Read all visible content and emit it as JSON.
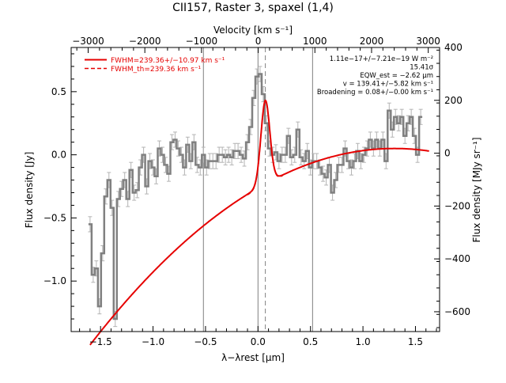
{
  "chart_data": {
    "type": "line",
    "title": "CII157, Raster 3, spaxel (1,4)",
    "xlabel": "λ−λrest [μm]",
    "ylabel": "Flux density [Jy]",
    "x2label": "Velocity [km s⁻¹]",
    "y2label": "Flux density [MJy sr⁻¹]",
    "xlim": [
      -1.78,
      1.73
    ],
    "ylim": [
      -1.4,
      0.85
    ],
    "x2lim": [
      -3300,
      3200
    ],
    "y2lim": [
      -675,
      400
    ],
    "xticks": [
      -1.5,
      -1.0,
      -0.5,
      0.0,
      0.5,
      1.0,
      1.5
    ],
    "xtick_labels": [
      "−1.5",
      "−1.0",
      "−0.5",
      "0.0",
      "0.5",
      "1.0",
      "1.5"
    ],
    "yticks": [
      -1.0,
      -0.5,
      0.0,
      0.5
    ],
    "ytick_labels": [
      "−1.0",
      "−0.5",
      "0.0",
      "0.5"
    ],
    "x2ticks": [
      -3000,
      -2000,
      -1000,
      0,
      1000,
      2000,
      3000
    ],
    "x2tick_labels": [
      "−3000",
      "−2000",
      "−1000",
      "0",
      "1000",
      "2000",
      "3000"
    ],
    "y2ticks": [
      -600,
      -400,
      -200,
      0,
      200,
      400
    ],
    "y2tick_labels": [
      "−600",
      "−400",
      "−200",
      "0",
      "200",
      "400"
    ],
    "vlines_solid": [
      -0.52,
      0.0,
      0.52
    ],
    "vline_dashed": 0.07,
    "legend": {
      "placement": "top-left",
      "fit_label": "FWHM=239.36+/−10.97 km s⁻¹",
      "theory_label": "FWHM_th=239.36 km s⁻¹"
    },
    "annotations": [
      "1.11e−17+/−7.21e−19 W m⁻²",
      "15.41σ",
      "EQW_est = −2.62 μm",
      "v = 139.41+/−5.82 km s⁻¹",
      "Broadening = 0.08+/−0.00 km s⁻¹"
    ],
    "colors": {
      "spectrum": "#808080",
      "errorbar": "#b4b4b4",
      "fit": "#e60000",
      "vline": "#808080"
    },
    "series": [
      {
        "name": "spectrum",
        "x": [
          -1.6,
          -1.57,
          -1.54,
          -1.51,
          -1.48,
          -1.45,
          -1.42,
          -1.39,
          -1.36,
          -1.33,
          -1.3,
          -1.27,
          -1.24,
          -1.21,
          -1.18,
          -1.15,
          -1.12,
          -1.09,
          -1.06,
          -1.03,
          -1.0,
          -0.97,
          -0.94,
          -0.91,
          -0.88,
          -0.85,
          -0.82,
          -0.79,
          -0.76,
          -0.73,
          -0.7,
          -0.67,
          -0.64,
          -0.61,
          -0.58,
          -0.55,
          -0.52,
          -0.49,
          -0.46,
          -0.43,
          -0.4,
          -0.37,
          -0.34,
          -0.31,
          -0.28,
          -0.25,
          -0.22,
          -0.19,
          -0.16,
          -0.13,
          -0.1,
          -0.07,
          -0.04,
          -0.01,
          0.02,
          0.05,
          0.08,
          0.11,
          0.14,
          0.17,
          0.2,
          0.23,
          0.26,
          0.29,
          0.32,
          0.35,
          0.38,
          0.41,
          0.44,
          0.47,
          0.5,
          0.53,
          0.56,
          0.59,
          0.62,
          0.65,
          0.68,
          0.71,
          0.74,
          0.77,
          0.8,
          0.83,
          0.86,
          0.89,
          0.92,
          0.95,
          0.98,
          1.01,
          1.04,
          1.07,
          1.1,
          1.13,
          1.16,
          1.19,
          1.22,
          1.25,
          1.28,
          1.31,
          1.34,
          1.37,
          1.4,
          1.43,
          1.46,
          1.49,
          1.52,
          1.55
        ],
        "y": [
          -0.55,
          -0.95,
          -0.9,
          -1.2,
          -0.78,
          -0.33,
          -0.2,
          -0.42,
          -1.3,
          -0.35,
          -0.27,
          -0.2,
          -0.35,
          -0.12,
          -0.3,
          -0.28,
          -0.1,
          0.0,
          -0.25,
          -0.05,
          -0.1,
          -0.17,
          0.05,
          0.0,
          -0.08,
          -0.15,
          0.1,
          0.12,
          0.05,
          0.0,
          -0.1,
          0.08,
          -0.05,
          0.1,
          -0.08,
          -0.1,
          0.0,
          -0.1,
          -0.05,
          -0.05,
          -0.05,
          0.0,
          0.0,
          -0.02,
          0.0,
          -0.02,
          0.03,
          0.03,
          0.0,
          -0.03,
          0.1,
          0.22,
          0.45,
          0.62,
          0.64,
          0.48,
          0.25,
          0.05,
          0.0,
          0.02,
          -0.05,
          0.0,
          0.0,
          0.15,
          -0.02,
          0.0,
          0.2,
          -0.02,
          -0.05,
          0.03,
          -0.1,
          -0.05,
          -0.05,
          -0.1,
          -0.15,
          -0.18,
          -0.08,
          -0.3,
          -0.2,
          -0.08,
          -0.08,
          0.05,
          -0.05,
          -0.1,
          -0.05,
          0.03,
          -0.05,
          0.0,
          0.05,
          0.12,
          0.05,
          0.12,
          0.05,
          0.12,
          -0.05,
          0.35,
          0.2,
          0.3,
          0.25,
          0.3,
          0.15,
          0.25,
          0.3,
          0.15,
          0.0,
          0.3
        ],
        "yerr": 0.06
      },
      {
        "name": "FWHM=239.36+/−10.97 km s⁻¹",
        "baseline": {
          "a": 0.0,
          "b": 0.15,
          "c": -0.125,
          "center": 1.4
        },
        "gauss": {
          "amplitude": 0.66,
          "center": 0.07,
          "fwhm": 0.1
        },
        "x_range": [
          -1.6,
          1.63
        ]
      }
    ]
  }
}
